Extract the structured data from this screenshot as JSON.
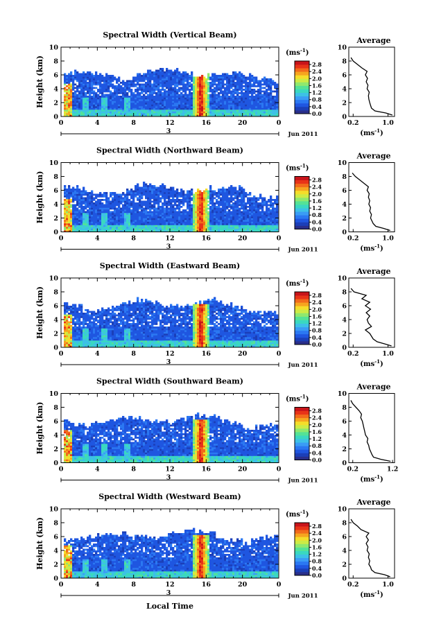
{
  "figure": {
    "x_label": "Local Time",
    "date_label": "Jun 2011",
    "day_label": "3",
    "y_label": "Height (km)",
    "colorbar_unit": "(ms",
    "colorbar_unit_exp": "-1",
    "colorbar_unit_close": ")",
    "avg_title": "Average",
    "avg_unit": "(ms",
    "avg_unit_exp": "-1",
    "avg_unit_close": ")"
  },
  "colormap": [
    "#2a2f8a",
    "#1b3fb8",
    "#1f56e0",
    "#2b78f2",
    "#3a9cf5",
    "#3dc1e6",
    "#3ad8c0",
    "#54e296",
    "#8fe86e",
    "#cdeb45",
    "#f5dd2a",
    "#f6a51f",
    "#f26b1b",
    "#e83318",
    "#c8141a"
  ],
  "chart_data": [
    {
      "type": "heatmap",
      "title": "Spectral Width (Vertical Beam)",
      "x_ticks": [
        "0",
        "4",
        "8",
        "12",
        "16",
        "20",
        "0"
      ],
      "xlim": [
        0,
        24
      ],
      "y_ticks": [
        "0",
        "2",
        "4",
        "6",
        "8",
        "10"
      ],
      "ylim": [
        0,
        10
      ],
      "colorbar_ticks": [
        "0.0",
        "0.4",
        "0.8",
        "1.2",
        "1.6",
        "2.0",
        "2.4",
        "2.8"
      ],
      "colorbar_range": [
        0,
        3.0
      ],
      "avg_profile": {
        "x_ticks": [
          "0.2",
          "1.0"
        ],
        "xlim": [
          0.1,
          1.15
        ],
        "y_ticks": [
          "0",
          "2",
          "4",
          "6",
          "8",
          "10"
        ],
        "height_km": [
          0.2,
          0.5,
          0.8,
          1.2,
          1.6,
          2.0,
          2.5,
          3.0,
          3.5,
          4.0,
          4.5,
          5.0,
          5.5,
          6.0,
          6.5,
          7.0,
          7.5,
          8.0,
          8.5
        ],
        "width_ms": [
          1.1,
          0.95,
          0.7,
          0.62,
          0.6,
          0.58,
          0.56,
          0.55,
          0.57,
          0.52,
          0.54,
          0.5,
          0.53,
          0.48,
          0.52,
          0.4,
          0.3,
          0.2,
          0.15
        ]
      }
    },
    {
      "type": "heatmap",
      "title": "Spectral Width (Northward Beam)",
      "x_ticks": [
        "0",
        "4",
        "8",
        "12",
        "16",
        "20",
        "0"
      ],
      "xlim": [
        0,
        24
      ],
      "y_ticks": [
        "0",
        "2",
        "4",
        "6",
        "8",
        "10"
      ],
      "ylim": [
        0,
        10
      ],
      "colorbar_ticks": [
        "0.0",
        "0.4",
        "0.8",
        "1.2",
        "1.6",
        "2.0",
        "2.4",
        "2.8"
      ],
      "colorbar_range": [
        0,
        3.0
      ],
      "avg_profile": {
        "x_ticks": [
          "0.2",
          "1.0"
        ],
        "xlim": [
          0.1,
          1.15
        ],
        "y_ticks": [
          "0",
          "2",
          "4",
          "6",
          "8",
          "10"
        ],
        "height_km": [
          0.2,
          0.5,
          0.8,
          1.2,
          1.6,
          2.0,
          2.5,
          3.0,
          3.5,
          4.0,
          4.5,
          5.0,
          5.5,
          6.0,
          6.5,
          7.0,
          7.5,
          8.0,
          8.5
        ],
        "width_ms": [
          1.05,
          0.9,
          0.72,
          0.66,
          0.63,
          0.6,
          0.62,
          0.58,
          0.6,
          0.56,
          0.58,
          0.55,
          0.57,
          0.52,
          0.55,
          0.45,
          0.35,
          0.25,
          0.18
        ]
      }
    },
    {
      "type": "heatmap",
      "title": "Spectral Width (Eastward Beam)",
      "x_ticks": [
        "0",
        "4",
        "8",
        "12",
        "16",
        "20",
        "0"
      ],
      "xlim": [
        0,
        24
      ],
      "y_ticks": [
        "0",
        "2",
        "4",
        "6",
        "8",
        "10"
      ],
      "ylim": [
        0,
        10
      ],
      "colorbar_ticks": [
        "0.0",
        "0.4",
        "0.8",
        "1.2",
        "1.6",
        "2.0",
        "2.4",
        "2.8"
      ],
      "colorbar_range": [
        0,
        3.0
      ],
      "avg_profile": {
        "x_ticks": [
          "0.2",
          "1.0"
        ],
        "xlim": [
          0.1,
          1.15
        ],
        "y_ticks": [
          "0",
          "2",
          "4",
          "6",
          "8",
          "10"
        ],
        "height_km": [
          0.2,
          0.5,
          0.8,
          1.2,
          1.6,
          2.0,
          2.5,
          3.0,
          3.5,
          4.0,
          4.5,
          5.0,
          5.5,
          6.0,
          6.5,
          7.0,
          7.5,
          8.0,
          8.5
        ],
        "width_ms": [
          1.08,
          0.92,
          0.75,
          0.66,
          0.62,
          0.58,
          0.48,
          0.62,
          0.55,
          0.52,
          0.58,
          0.5,
          0.6,
          0.48,
          0.58,
          0.4,
          0.5,
          0.22,
          0.15
        ]
      }
    },
    {
      "type": "heatmap",
      "title": "Spectral Width (Southward Beam)",
      "x_ticks": [
        "0",
        "4",
        "8",
        "12",
        "16",
        "20",
        "0"
      ],
      "xlim": [
        0,
        24
      ],
      "y_ticks": [
        "0",
        "2",
        "4",
        "6",
        "8",
        "10"
      ],
      "ylim": [
        0,
        10
      ],
      "colorbar_ticks": [
        "0.0",
        "0.4",
        "0.8",
        "1.2",
        "1.6",
        "2.0",
        "2.4",
        "2.8"
      ],
      "colorbar_range": [
        0,
        3.0
      ],
      "avg_profile": {
        "x_ticks": [
          "0.2",
          "1.2"
        ],
        "xlim": [
          0.1,
          1.25
        ],
        "y_ticks": [
          "0",
          "2",
          "4",
          "6",
          "8",
          "10"
        ],
        "height_km": [
          0.2,
          0.5,
          0.8,
          1.2,
          1.6,
          2.0,
          2.5,
          3.0,
          3.5,
          4.0,
          4.5,
          5.0,
          5.5,
          6.0,
          6.5,
          7.0,
          7.5,
          8.0,
          8.5,
          9.0
        ],
        "width_ms": [
          1.15,
          0.9,
          0.72,
          0.68,
          0.65,
          0.62,
          0.6,
          0.56,
          0.58,
          0.52,
          0.5,
          0.48,
          0.46,
          0.44,
          0.4,
          0.42,
          0.36,
          0.28,
          0.2,
          0.15
        ]
      }
    },
    {
      "type": "heatmap",
      "title": "Spectral Width (Westward Beam)",
      "x_ticks": [
        "0",
        "4",
        "8",
        "12",
        "16",
        "20",
        "0"
      ],
      "xlim": [
        0,
        24
      ],
      "y_ticks": [
        "0",
        "2",
        "4",
        "6",
        "8",
        "10"
      ],
      "ylim": [
        0,
        10
      ],
      "colorbar_ticks": [
        "0.0",
        "0.4",
        "0.8",
        "1.2",
        "1.6",
        "2.0",
        "2.4",
        "2.8"
      ],
      "colorbar_range": [
        0,
        3.0
      ],
      "avg_profile": {
        "x_ticks": [
          "0.2",
          "1.0"
        ],
        "xlim": [
          0.1,
          1.15
        ],
        "y_ticks": [
          "0",
          "2",
          "4",
          "6",
          "8",
          "10"
        ],
        "height_km": [
          0.2,
          0.5,
          0.8,
          1.2,
          1.6,
          2.0,
          2.5,
          3.0,
          3.5,
          4.0,
          4.5,
          5.0,
          5.5,
          6.0,
          6.5,
          7.0,
          7.5,
          8.0,
          8.5
        ],
        "width_ms": [
          1.05,
          0.92,
          0.7,
          0.62,
          0.6,
          0.56,
          0.58,
          0.55,
          0.57,
          0.52,
          0.54,
          0.5,
          0.55,
          0.5,
          0.56,
          0.38,
          0.3,
          0.2,
          0.15
        ]
      }
    }
  ]
}
